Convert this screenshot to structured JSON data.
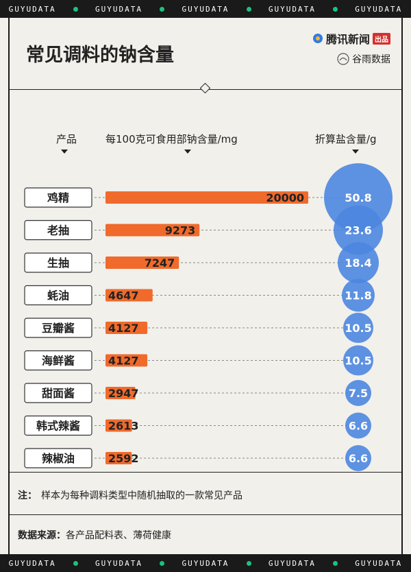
{
  "band_text": "GUYUDATA",
  "title": "常见调料的钠含量",
  "brand": {
    "publisher": "腾讯新闻",
    "publisher_tag": "出品",
    "partner": "谷雨数据"
  },
  "headers": {
    "product": "产品",
    "sodium": "每100克可食用部钠含量/mg",
    "salt": "折算盐含量/g"
  },
  "chart_data": {
    "type": "bar",
    "title": "常见调料的钠含量",
    "categories": [
      "鸡精",
      "老抽",
      "生抽",
      "蚝油",
      "豆瓣酱",
      "海鲜酱",
      "甜面酱",
      "韩式辣酱",
      "辣椒油"
    ],
    "series": [
      {
        "name": "每100克可食用部钠含量/mg",
        "values": [
          20000,
          9273,
          7247,
          4647,
          4127,
          4127,
          2947,
          2613,
          2592
        ]
      },
      {
        "name": "折算盐含量/g",
        "values": [
          "50.8",
          "23.6",
          "18.4",
          "11.8",
          "10.5",
          "10.5",
          "7.5",
          "6.6",
          "6.6"
        ]
      }
    ],
    "xlim": [
      0,
      20000
    ],
    "colors": {
      "bar": "#f06a2c",
      "bubble": "#4d86e0"
    }
  },
  "note_label": "注：",
  "note_text": "样本为每种调料类型中随机抽取的一款常见产品",
  "source_label": "数据来源：",
  "source_text": "各产品配料表、薄荷健康"
}
